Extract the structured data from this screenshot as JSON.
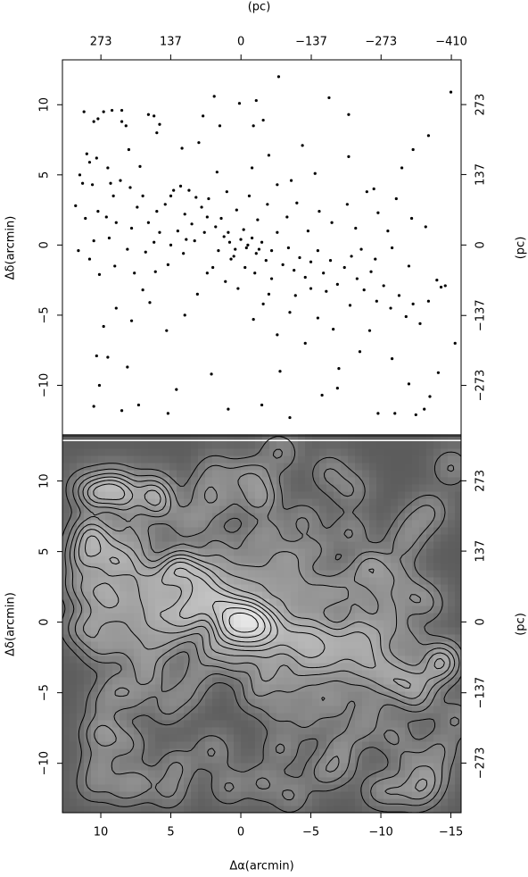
{
  "chart_data": [
    {
      "type": "scatter",
      "color": "#000000",
      "ylabel": "Δδ(arcmin)",
      "x2label": "(pc)",
      "y2label": "(pc)",
      "xlim": [
        12.74,
        -15.73
      ],
      "ylim": [
        -13.6,
        13.2
      ],
      "yticks": [
        {
          "value": -10,
          "label": "−10"
        },
        {
          "value": -5,
          "label": "−5"
        },
        0,
        5,
        10
      ],
      "x2lim": [
        348,
        -429
      ],
      "x2ticks": [
        273,
        137,
        0,
        {
          "value": -137,
          "label": "−137"
        },
        {
          "value": -273,
          "label": "−273"
        },
        {
          "value": -410,
          "label": "−410"
        }
      ],
      "y2lim": [
        -371,
        360
      ],
      "y2ticks": [
        {
          "value": -273,
          "label": "−273"
        },
        {
          "value": -137,
          "label": "−137"
        },
        0,
        137,
        273
      ],
      "x": [
        11.2,
        10.5,
        10.2,
        9.8,
        9.2,
        8.5,
        8.5,
        8.2,
        6.6,
        6.2,
        5.8,
        6.0,
        11.0,
        10.8,
        10.3,
        11.3,
        10.6,
        9.5,
        8.6,
        7.9,
        7.2,
        8.0,
        9.3,
        9.1,
        11.5,
        11.8,
        11.1,
        10.2,
        9.6,
        8.9,
        7.8,
        7.4,
        7.0,
        6.6,
        6.0,
        5.4,
        5.0,
        4.8,
        4.3,
        3.7,
        3.2,
        2.8,
        2.4,
        4.0,
        3.5,
        4.5,
        5.8,
        6.2,
        6.8,
        8.1,
        9.4,
        10.5,
        11.6,
        10.8,
        10.1,
        9.0,
        7.6,
        5.2,
        4.1,
        3.3,
        2.6,
        1.8,
        1.2,
        0.8,
        0.4,
        0.0,
        -0.4,
        -0.8,
        -1.1,
        -1.5,
        -1.8,
        -2.2,
        -2.6,
        -3.0,
        -3.4,
        -3.8,
        -4.2,
        -4.6,
        -5.0,
        -5.5,
        -5.9,
        -6.4,
        -6.9,
        -7.4,
        -7.9,
        -8.3,
        -8.8,
        -9.3,
        -9.7,
        -10.2,
        -10.7,
        -11.3,
        -11.8,
        -12.3,
        -12.8,
        -13.4,
        -14.0,
        -14.3,
        -13.2,
        -12.2,
        -11.1,
        -10.5,
        -9.8,
        -9.0,
        -8.2,
        -7.6,
        -6.5,
        -5.6,
        -4.8,
        -4.0,
        -3.3,
        -2.6,
        -1.9,
        -1.2,
        -0.6,
        0.3,
        1.0,
        1.7,
        2.3,
        -0.8,
        -2.0,
        -3.6,
        -5.3,
        -7.7,
        -9.5,
        -11.5,
        -12.3,
        -13.4,
        -15.0,
        -14.6,
        -15.3,
        -14.1,
        -13.5,
        -12.0,
        -11.0,
        -10.8,
        -9.2,
        -8.5,
        -7.0,
        -6.6,
        -5.5,
        -4.6,
        -3.5,
        -2.6,
        -1.6,
        -0.9,
        0.2,
        1.1,
        2.4,
        3.1,
        4.0,
        5.3,
        6.5,
        7.8,
        8.9,
        9.8,
        10.3,
        9.5,
        8.1,
        7.3,
        8.5,
        10.5,
        10.1,
        5.2,
        4.6,
        2.1,
        0.9,
        -1.5,
        -3.5,
        -2.8,
        -5.8,
        -6.9,
        1.9,
        0.1,
        -0.9,
        -1.1,
        -2.7,
        -6.3,
        -7.7,
        -4.4,
        -1.6,
        2.7,
        4.2,
        3.0,
        1.5,
        -9.8,
        -12.5,
        -13.1,
        -5.0,
        -3.9,
        -2.2,
        -0.3,
        0.7,
        1.6,
        2.0,
        -1.0,
        -2.0,
        -6.1,
        -7.8,
        -8.6,
        -9.6,
        -10.8,
        -12.0,
        3.9,
        5.0,
        6.1,
        7.0,
        1.4,
        -0.2,
        0.5,
        -0.5,
        -1.3,
        0.9
      ],
      "y": [
        9.5,
        8.8,
        9.0,
        9.5,
        9.6,
        9.6,
        8.8,
        8.5,
        9.3,
        9.2,
        8.6,
        8.0,
        6.5,
        5.9,
        6.2,
        4.4,
        4.3,
        5.5,
        4.6,
        4.1,
        5.6,
        6.8,
        4.4,
        3.5,
        5.0,
        2.8,
        1.9,
        2.4,
        2.0,
        1.6,
        1.2,
        2.7,
        3.5,
        1.6,
        2.4,
        2.9,
        3.5,
        3.9,
        4.2,
        3.9,
        3.4,
        2.7,
        2.0,
        2.2,
        1.5,
        1.0,
        0.9,
        0.2,
        -0.5,
        -0.3,
        0.5,
        0.3,
        -0.4,
        -1.0,
        -2.1,
        -1.5,
        -2.0,
        -1.4,
        -0.6,
        0.3,
        0.9,
        1.3,
        0.6,
        0.2,
        -0.3,
        0.4,
        -0.2,
        0.5,
        -0.6,
        0.2,
        -1.1,
        -0.4,
        0.9,
        -1.4,
        -0.2,
        -1.8,
        -0.9,
        -2.3,
        -1.2,
        -0.4,
        -2.0,
        -1.1,
        -2.8,
        -1.6,
        -0.8,
        -2.4,
        -3.2,
        -1.9,
        -4.0,
        -2.9,
        -4.5,
        -3.6,
        -5.1,
        -4.2,
        -5.6,
        -4.0,
        -2.5,
        -3.0,
        1.3,
        1.9,
        3.3,
        1.0,
        2.3,
        3.8,
        1.2,
        2.9,
        1.6,
        2.4,
        1.0,
        3.0,
        2.0,
        4.3,
        2.9,
        1.8,
        3.5,
        2.5,
        3.8,
        5.2,
        3.3,
        5.5,
        6.4,
        4.6,
        5.1,
        6.3,
        4.0,
        5.5,
        6.8,
        7.8,
        10.9,
        -2.9,
        -7.0,
        -9.1,
        -10.8,
        -9.9,
        -12.0,
        -8.1,
        -6.1,
        -7.6,
        -8.8,
        -6.0,
        -5.2,
        -7.0,
        -4.8,
        -6.4,
        -4.2,
        -5.3,
        -3.1,
        -2.6,
        -2.0,
        -3.5,
        -5.0,
        -6.1,
        -4.1,
        -5.4,
        -4.5,
        -5.8,
        -7.9,
        -8.0,
        -8.7,
        -11.4,
        -11.8,
        -11.5,
        -10.0,
        -12.0,
        -10.3,
        -9.2,
        -11.7,
        -11.4,
        -12.3,
        -9.0,
        -10.7,
        -10.2,
        10.6,
        10.1,
        8.5,
        10.3,
        12.0,
        10.5,
        9.3,
        7.1,
        8.9,
        9.2,
        6.9,
        7.3,
        8.5,
        -12.0,
        -12.1,
        -11.7,
        -3.1,
        -3.6,
        -2.4,
        -1.6,
        -1.0,
        -0.4,
        -1.6,
        -2.0,
        -3.5,
        -3.3,
        -4.3,
        -0.3,
        -1.0,
        -0.2,
        -1.5,
        0.4,
        0.0,
        -1.9,
        -3.2,
        1.9,
        1.1,
        -0.8,
        0.0,
        -0.3,
        0.9
      ]
    },
    {
      "type": "density",
      "xlabel": "Δα(arcmin)",
      "ylabel": "Δδ(arcmin)",
      "y2label": "(pc)",
      "xlim": [
        12.74,
        -15.73
      ],
      "ylim": [
        -13.5,
        13.2
      ],
      "xticks": [
        10,
        5,
        0,
        {
          "value": -5,
          "label": "−5"
        },
        {
          "value": -10,
          "label": "−10"
        },
        {
          "value": -15,
          "label": "−15"
        }
      ],
      "yticks": [
        {
          "value": -10,
          "label": "−10"
        },
        {
          "value": -5,
          "label": "−5"
        },
        0,
        5,
        10
      ],
      "y2lim": [
        -369,
        360
      ],
      "y2ticks": [
        {
          "value": -273,
          "label": "−273"
        },
        {
          "value": -137,
          "label": "−137"
        },
        0,
        137,
        273
      ]
    }
  ]
}
